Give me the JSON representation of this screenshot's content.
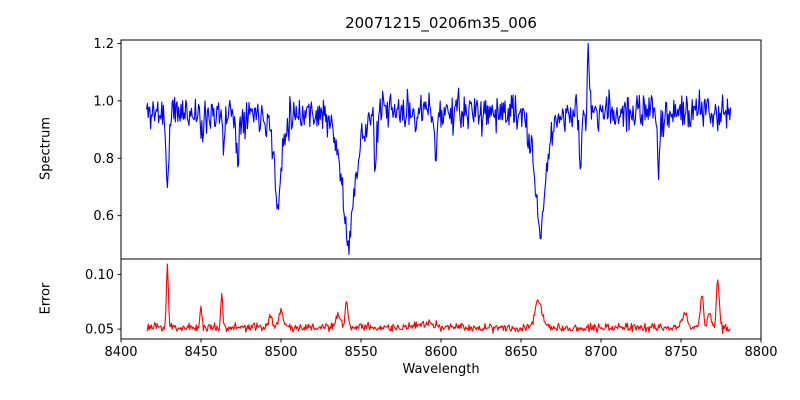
{
  "title": "20071215_0206m35_006",
  "axes": {
    "xlabel": "Wavelength",
    "spectrum_ylabel": "Spectrum",
    "error_ylabel": "Error",
    "xticks": [
      8400,
      8450,
      8500,
      8550,
      8600,
      8650,
      8700,
      8750,
      8800
    ],
    "xtick_labels": [
      "8400",
      "8450",
      "8500",
      "8550",
      "8600",
      "8650",
      "8700",
      "8750",
      "8800"
    ]
  },
  "colors": {
    "spectrum_line": "#0000ff",
    "error_line": "#ff0000",
    "axis": "#000000",
    "text": "#000000",
    "background": "#ffffff"
  },
  "chart_data": [
    {
      "type": "line",
      "name": "spectrum",
      "title": "20071215_0206m35_006",
      "xlabel": "Wavelength",
      "ylabel": "Spectrum",
      "color": "#0000ff",
      "xlim": [
        8400,
        8800
      ],
      "ylim": [
        0.449,
        1.212
      ],
      "yticks": [
        0.6,
        0.8,
        1.0,
        1.2
      ],
      "ytick_labels": [
        "0.6",
        "0.8",
        "1.0",
        "1.2"
      ],
      "x_range": [
        8416,
        8781
      ],
      "sample_step": 0.5,
      "baseline": 0.96,
      "noise_amplitude": 0.065,
      "noise_seed": 11,
      "noise_scales_with_flux": true,
      "dips": [
        {
          "center": 8429,
          "amp": 0.28,
          "sigma": 0.8
        },
        {
          "center": 8451,
          "amp": 0.1,
          "sigma": 0.8
        },
        {
          "center": 8464,
          "amp": 0.12,
          "sigma": 0.8
        },
        {
          "center": 8473,
          "amp": 0.18,
          "sigma": 0.8
        },
        {
          "center": 8498,
          "amp": 0.2,
          "sigma": 1.5
        },
        {
          "center": 8498,
          "amp": 0.14,
          "sigma": 3.5
        },
        {
          "center": 8542,
          "amp": 0.27,
          "sigma": 6.0
        },
        {
          "center": 8542,
          "amp": 0.2,
          "sigma": 2.0
        },
        {
          "center": 8559,
          "amp": 0.22,
          "sigma": 0.7
        },
        {
          "center": 8597,
          "amp": 0.16,
          "sigma": 0.7
        },
        {
          "center": 8662,
          "amp": 0.25,
          "sigma": 5.0
        },
        {
          "center": 8662,
          "amp": 0.18,
          "sigma": 1.8
        },
        {
          "center": 8687,
          "amp": 0.22,
          "sigma": 0.7
        },
        {
          "center": 8736,
          "amp": 0.23,
          "sigma": 0.7
        }
      ],
      "peaks": [
        {
          "center": 8692,
          "amp": 0.21,
          "sigma": 0.6
        }
      ],
      "key_points": [
        {
          "x": 8429,
          "y": 0.68
        },
        {
          "x": 8473,
          "y": 0.78
        },
        {
          "x": 8498,
          "y": 0.62
        },
        {
          "x": 8542,
          "y": 0.49
        },
        {
          "x": 8662,
          "y": 0.53
        },
        {
          "x": 8692,
          "y": 1.17
        },
        {
          "x": 8736,
          "y": 0.73
        }
      ]
    },
    {
      "type": "line",
      "name": "error",
      "ylabel": "Error",
      "color": "#ff0000",
      "xlim": [
        8400,
        8800
      ],
      "ylim": [
        0.041,
        0.114
      ],
      "yticks": [
        0.05,
        0.1
      ],
      "ytick_labels": [
        "0.05",
        "0.10"
      ],
      "x_range": [
        8416,
        8781
      ],
      "sample_step": 0.5,
      "baseline": 0.0515,
      "noise_amplitude": 0.004,
      "noise_seed": 23,
      "noise_scales_with_flux": false,
      "dips": [
        {
          "center": 8779,
          "amp": 0.004,
          "sigma": 1.0
        }
      ],
      "peaks": [
        {
          "center": 8429,
          "amp": 0.058,
          "sigma": 0.6
        },
        {
          "center": 8450,
          "amp": 0.019,
          "sigma": 0.6
        },
        {
          "center": 8463,
          "amp": 0.032,
          "sigma": 0.6
        },
        {
          "center": 8493,
          "amp": 0.01,
          "sigma": 1.2
        },
        {
          "center": 8500,
          "amp": 0.016,
          "sigma": 1.5
        },
        {
          "center": 8536,
          "amp": 0.012,
          "sigma": 1.2
        },
        {
          "center": 8541,
          "amp": 0.022,
          "sigma": 1.0
        },
        {
          "center": 8592,
          "amp": 0.004,
          "sigma": 4.0
        },
        {
          "center": 8661,
          "amp": 0.024,
          "sigma": 2.2
        },
        {
          "center": 8752,
          "amp": 0.012,
          "sigma": 1.8
        },
        {
          "center": 8763,
          "amp": 0.03,
          "sigma": 1.0
        },
        {
          "center": 8768,
          "amp": 0.014,
          "sigma": 1.0
        },
        {
          "center": 8773,
          "amp": 0.044,
          "sigma": 0.9
        }
      ],
      "key_points": [
        {
          "x": 8429,
          "y": 0.11
        },
        {
          "x": 8450,
          "y": 0.071
        },
        {
          "x": 8463,
          "y": 0.084
        },
        {
          "x": 8542,
          "y": 0.075
        },
        {
          "x": 8662,
          "y": 0.078
        },
        {
          "x": 8763,
          "y": 0.082
        },
        {
          "x": 8773,
          "y": 0.096
        }
      ]
    }
  ]
}
